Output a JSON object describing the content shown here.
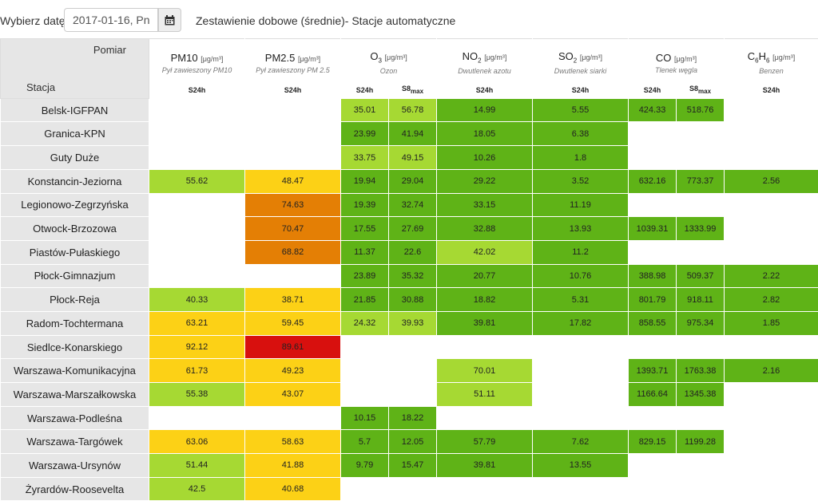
{
  "header": {
    "date_label": "Wybierz datę:",
    "date_value": "2017-01-16, Pn",
    "title": "Zestawienie dobowe (średnie)- Stacje automatyczne"
  },
  "table": {
    "corner_top": "Pomiar",
    "corner_bottom": "Stacja",
    "columns": [
      {
        "name": "PM10",
        "unit": "[μg/m³]",
        "desc": "Pył zawieszony PM10",
        "subs": [
          "S24h"
        ]
      },
      {
        "name": "PM2.5",
        "unit": "[μg/m³]",
        "desc": "Pył zawieszony PM 2.5",
        "subs": [
          "S24h"
        ]
      },
      {
        "name": "O3",
        "unit": "[μg/m³]",
        "desc": "Ozon",
        "subs": [
          "S24h",
          "S8max"
        ]
      },
      {
        "name": "NO2",
        "unit": "[μg/m³]",
        "desc": "Dwutlenek azotu",
        "subs": [
          "S24h"
        ]
      },
      {
        "name": "SO2",
        "unit": "[μg/m³]",
        "desc": "Dwutlenek siarki",
        "subs": [
          "S24h"
        ]
      },
      {
        "name": "CO",
        "unit": "[μg/m³]",
        "desc": "Tlenek węgla",
        "subs": [
          "S24h",
          "S8max"
        ]
      },
      {
        "name": "C6H6",
        "unit": "[μg/m³]",
        "desc": "Benzen",
        "subs": [
          "S24h"
        ]
      }
    ],
    "rows": [
      {
        "station": "Belsk-IGFPAN",
        "cells": [
          [
            "",
            ""
          ],
          [
            "",
            ""
          ],
          [
            "35.01",
            "c2"
          ],
          [
            "56.78",
            "c2"
          ],
          [
            "14.99",
            "c1"
          ],
          [
            "5.55",
            "c1"
          ],
          [
            "424.33",
            "c1"
          ],
          [
            "518.76",
            "c1"
          ],
          [
            "",
            ""
          ]
        ]
      },
      {
        "station": "Granica-KPN",
        "cells": [
          [
            "",
            ""
          ],
          [
            "",
            ""
          ],
          [
            "23.99",
            "c1"
          ],
          [
            "41.94",
            "c1"
          ],
          [
            "18.05",
            "c1"
          ],
          [
            "6.38",
            "c1"
          ],
          [
            "",
            ""
          ],
          [
            "",
            ""
          ],
          [
            "",
            ""
          ]
        ]
      },
      {
        "station": "Guty Duże",
        "cells": [
          [
            "",
            ""
          ],
          [
            "",
            ""
          ],
          [
            "33.75",
            "c2"
          ],
          [
            "49.15",
            "c2"
          ],
          [
            "10.26",
            "c1"
          ],
          [
            "1.8",
            "c1"
          ],
          [
            "",
            ""
          ],
          [
            "",
            ""
          ],
          [
            "",
            ""
          ]
        ]
      },
      {
        "station": "Konstancin-Jeziorna",
        "cells": [
          [
            "55.62",
            "c2"
          ],
          [
            "48.47",
            "c3"
          ],
          [
            "19.94",
            "c1"
          ],
          [
            "29.04",
            "c1"
          ],
          [
            "29.22",
            "c1"
          ],
          [
            "3.52",
            "c1"
          ],
          [
            "632.16",
            "c1"
          ],
          [
            "773.37",
            "c1"
          ],
          [
            "2.56",
            "c1"
          ]
        ]
      },
      {
        "station": "Legionowo-Zegrzyńska",
        "cells": [
          [
            "",
            ""
          ],
          [
            "74.63",
            "c4"
          ],
          [
            "19.39",
            "c1"
          ],
          [
            "32.74",
            "c1"
          ],
          [
            "33.15",
            "c1"
          ],
          [
            "11.19",
            "c1"
          ],
          [
            "",
            ""
          ],
          [
            "",
            ""
          ],
          [
            "",
            ""
          ]
        ]
      },
      {
        "station": "Otwock-Brzozowa",
        "cells": [
          [
            "",
            ""
          ],
          [
            "70.47",
            "c4"
          ],
          [
            "17.55",
            "c1"
          ],
          [
            "27.69",
            "c1"
          ],
          [
            "32.88",
            "c1"
          ],
          [
            "13.93",
            "c1"
          ],
          [
            "1039.31",
            "c1"
          ],
          [
            "1333.99",
            "c1"
          ],
          [
            "",
            ""
          ]
        ]
      },
      {
        "station": "Piastów-Pułaskiego",
        "cells": [
          [
            "",
            ""
          ],
          [
            "68.82",
            "c4"
          ],
          [
            "11.37",
            "c1"
          ],
          [
            "22.6",
            "c1"
          ],
          [
            "42.02",
            "c2"
          ],
          [
            "11.2",
            "c1"
          ],
          [
            "",
            ""
          ],
          [
            "",
            ""
          ],
          [
            "",
            ""
          ]
        ]
      },
      {
        "station": "Płock-Gimnazjum",
        "cells": [
          [
            "",
            ""
          ],
          [
            "",
            ""
          ],
          [
            "23.89",
            "c1"
          ],
          [
            "35.32",
            "c1"
          ],
          [
            "20.77",
            "c1"
          ],
          [
            "10.76",
            "c1"
          ],
          [
            "388.98",
            "c1"
          ],
          [
            "509.37",
            "c1"
          ],
          [
            "2.22",
            "c1"
          ]
        ]
      },
      {
        "station": "Płock-Reja",
        "cells": [
          [
            "40.33",
            "c2"
          ],
          [
            "38.71",
            "c3"
          ],
          [
            "21.85",
            "c1"
          ],
          [
            "30.88",
            "c1"
          ],
          [
            "18.82",
            "c1"
          ],
          [
            "5.31",
            "c1"
          ],
          [
            "801.79",
            "c1"
          ],
          [
            "918.11",
            "c1"
          ],
          [
            "2.82",
            "c1"
          ]
        ]
      },
      {
        "station": "Radom-Tochtermana",
        "cells": [
          [
            "63.21",
            "c3"
          ],
          [
            "59.45",
            "c3"
          ],
          [
            "24.32",
            "c2"
          ],
          [
            "39.93",
            "c2"
          ],
          [
            "39.81",
            "c1"
          ],
          [
            "17.82",
            "c1"
          ],
          [
            "858.55",
            "c1"
          ],
          [
            "975.34",
            "c1"
          ],
          [
            "1.85",
            "c1"
          ]
        ]
      },
      {
        "station": "Siedlce-Konarskiego",
        "cells": [
          [
            "92.12",
            "c3"
          ],
          [
            "89.61",
            "c5"
          ],
          [
            "",
            ""
          ],
          [
            "",
            ""
          ],
          [
            "",
            ""
          ],
          [
            "",
            ""
          ],
          [
            "",
            ""
          ],
          [
            "",
            ""
          ],
          [
            "",
            ""
          ]
        ]
      },
      {
        "station": "Warszawa-Komunikacyjna",
        "cells": [
          [
            "61.73",
            "c3"
          ],
          [
            "49.23",
            "c3"
          ],
          [
            "",
            ""
          ],
          [
            "",
            ""
          ],
          [
            "70.01",
            "c2"
          ],
          [
            "",
            ""
          ],
          [
            "1393.71",
            "c1"
          ],
          [
            "1763.38",
            "c1"
          ],
          [
            "2.16",
            "c1"
          ]
        ]
      },
      {
        "station": "Warszawa-Marszałkowska",
        "cells": [
          [
            "55.38",
            "c2"
          ],
          [
            "43.07",
            "c3"
          ],
          [
            "",
            ""
          ],
          [
            "",
            ""
          ],
          [
            "51.11",
            "c2"
          ],
          [
            "",
            ""
          ],
          [
            "1166.64",
            "c1"
          ],
          [
            "1345.38",
            "c1"
          ],
          [
            "",
            ""
          ]
        ]
      },
      {
        "station": "Warszawa-Podleśna",
        "cells": [
          [
            "",
            ""
          ],
          [
            "",
            ""
          ],
          [
            "10.15",
            "c1"
          ],
          [
            "18.22",
            "c1"
          ],
          [
            "",
            ""
          ],
          [
            "",
            ""
          ],
          [
            "",
            ""
          ],
          [
            "",
            ""
          ],
          [
            "",
            ""
          ]
        ]
      },
      {
        "station": "Warszawa-Targówek",
        "cells": [
          [
            "63.06",
            "c3"
          ],
          [
            "58.63",
            "c3"
          ],
          [
            "5.7",
            "c1"
          ],
          [
            "12.05",
            "c1"
          ],
          [
            "57.79",
            "c1"
          ],
          [
            "7.62",
            "c1"
          ],
          [
            "829.15",
            "c1"
          ],
          [
            "1199.28",
            "c1"
          ],
          [
            "",
            ""
          ]
        ]
      },
      {
        "station": "Warszawa-Ursynów",
        "cells": [
          [
            "51.44",
            "c2"
          ],
          [
            "41.88",
            "c3"
          ],
          [
            "9.79",
            "c1"
          ],
          [
            "15.47",
            "c1"
          ],
          [
            "39.81",
            "c1"
          ],
          [
            "13.55",
            "c1"
          ],
          [
            "",
            ""
          ],
          [
            "",
            ""
          ],
          [
            "",
            ""
          ]
        ]
      },
      {
        "station": "Żyrardów-Roosevelta",
        "cells": [
          [
            "42.5",
            "c2"
          ],
          [
            "40.68",
            "c3"
          ],
          [
            "",
            ""
          ],
          [
            "",
            ""
          ],
          [
            "",
            ""
          ],
          [
            "",
            ""
          ],
          [
            "",
            ""
          ],
          [
            "",
            ""
          ],
          [
            "",
            ""
          ]
        ]
      }
    ]
  },
  "colors": {
    "c1": "#5fb317",
    "c2": "#a6d933",
    "c3": "#fcd116",
    "c4": "#e47f05",
    "c5": "#d8100e"
  },
  "icons": {
    "date_button": "calendar-icon"
  }
}
